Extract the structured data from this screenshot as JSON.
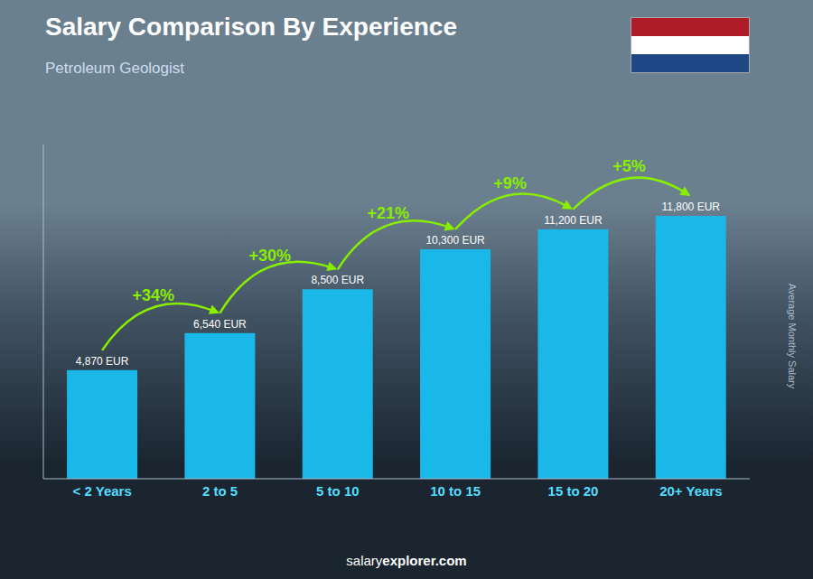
{
  "chart_data": {
    "type": "bar",
    "title": "Salary Comparison By Experience",
    "subtitle": "Petroleum Geologist",
    "y_label": "Average Monthly Salary",
    "categories": [
      "< 2 Years",
      "2 to 5",
      "5 to 10",
      "10 to 15",
      "15 to 20",
      "20+ Years"
    ],
    "values": [
      4870,
      6540,
      8500,
      10300,
      11200,
      11800
    ],
    "value_labels": [
      "4,870 EUR",
      "6,540 EUR",
      "8,500 EUR",
      "10,300 EUR",
      "11,200 EUR",
      "11,800 EUR"
    ],
    "data_labels": true,
    "color": "#1ab8e8",
    "ylim": [
      0,
      15000
    ],
    "tick_labels": "x",
    "grid": false,
    "annotations": [
      {
        "from": "< 2 Years",
        "to": "2 to 5",
        "text": "+34%",
        "color": "#88ee00"
      },
      {
        "from": "2 to 5",
        "to": "5 to 10",
        "text": "+30%",
        "color": "#88ee00"
      },
      {
        "from": "5 to 10",
        "to": "10 to 15",
        "text": "+21%",
        "color": "#88ee00"
      },
      {
        "from": "10 to 15",
        "to": "15 to 20",
        "text": "+9%",
        "color": "#88ee00"
      },
      {
        "from": "15 to 20",
        "to": "20+ Years",
        "text": "+5%",
        "color": "#88ee00"
      }
    ],
    "footer": [
      "salary",
      "explorer.com"
    ]
  }
}
